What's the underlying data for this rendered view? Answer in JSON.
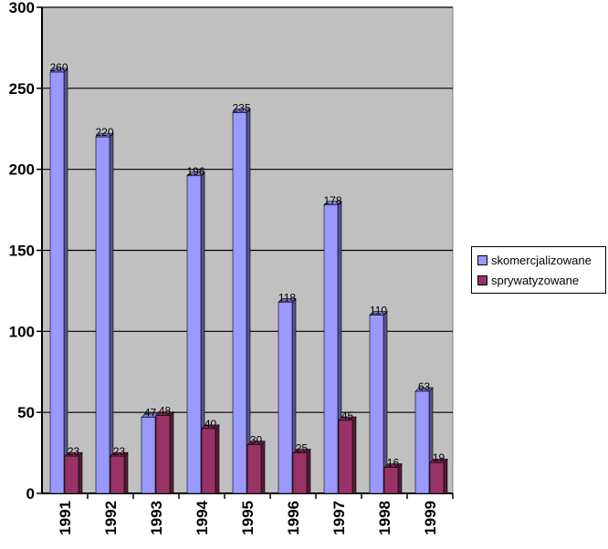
{
  "chart_data": {
    "type": "bar",
    "categories": [
      "1991",
      "1992",
      "1993",
      "1994",
      "1995",
      "1996",
      "1997",
      "1998",
      "1999"
    ],
    "series": [
      {
        "name": "skomercjalizowane",
        "color": "#9999ff",
        "values": [
          260,
          220,
          47,
          196,
          235,
          118,
          178,
          110,
          63
        ],
        "labels": [
          "260",
          "220",
          "47",
          "196",
          "235",
          "118",
          "178",
          "110",
          "63"
        ]
      },
      {
        "name": "sprywatyzowane",
        "color": "#993366",
        "values": [
          23,
          23,
          48,
          40,
          30,
          25,
          45,
          16,
          19
        ],
        "labels": [
          "23",
          "23",
          "48",
          "40",
          "30",
          "25",
          "45",
          "16",
          "19"
        ]
      }
    ],
    "yticks": [
      "0",
      "50",
      "100",
      "150",
      "200",
      "250",
      "300"
    ],
    "ylim": [
      0,
      300
    ],
    "grid": true,
    "legend": "right",
    "plot_background": "#c0c0c0"
  }
}
